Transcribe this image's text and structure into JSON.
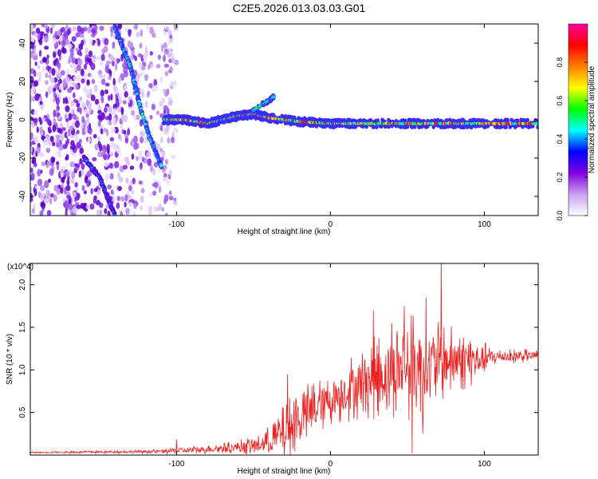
{
  "title": "C2E5.2026.013.03.03.G01",
  "chart_data": [
    {
      "type": "heatmap",
      "xlabel": "Height of straight line (km)",
      "ylabel": "Frequency (Hz)",
      "xlim": [
        -195,
        135
      ],
      "ylim": [
        -50,
        50
      ],
      "xticks": [
        -100,
        0,
        100
      ],
      "xtick_labels": [
        "-100",
        "0",
        "100"
      ],
      "yticks": [
        -40,
        -20,
        0,
        20,
        40
      ],
      "ytick_labels": [
        "-40",
        "-20",
        "0",
        "20",
        "40"
      ],
      "colorbar": {
        "label": "Normalized spectral amplitude",
        "range": [
          0,
          1
        ],
        "ticks": [
          0.0,
          0.2,
          0.4,
          0.6,
          0.8
        ],
        "tick_labels": [
          "0.0",
          "0.2",
          "0.4",
          "0.6",
          "0.8"
        ],
        "colors": [
          "#ffffff",
          "#c8a0f0",
          "#8000e0",
          "#0000ff",
          "#00ffff",
          "#00ff00",
          "#ffff00",
          "#ff8000",
          "#ff0000",
          "#ff00a0"
        ]
      },
      "features": {
        "noise_region_x": [
          -195,
          -100
        ],
        "main_trace": [
          [
            -108,
            0
          ],
          [
            -95,
            0
          ],
          [
            -80,
            -2
          ],
          [
            -70,
            0
          ],
          [
            -60,
            2
          ],
          [
            -50,
            3
          ],
          [
            -40,
            1
          ],
          [
            -20,
            -1
          ],
          [
            0,
            -2
          ],
          [
            20,
            -2
          ],
          [
            50,
            -2
          ],
          [
            80,
            -2
          ],
          [
            100,
            -2
          ],
          [
            135,
            -2
          ]
        ],
        "descending_trace": [
          [
            -140,
            48
          ],
          [
            -135,
            38
          ],
          [
            -130,
            28
          ],
          [
            -127,
            18
          ],
          [
            -123,
            5
          ],
          [
            -118,
            -8
          ],
          [
            -113,
            -18
          ],
          [
            -110,
            -24
          ]
        ],
        "lower_trace": [
          [
            -160,
            -20
          ],
          [
            -150,
            -30
          ],
          [
            -145,
            -40
          ],
          [
            -140,
            -50
          ]
        ],
        "branch": [
          [
            -50,
            5
          ],
          [
            -40,
            10
          ],
          [
            -37,
            12
          ]
        ]
      }
    },
    {
      "type": "line",
      "xlabel": "Height of straight line (km)",
      "ylabel": "SNR (10 * v/v)",
      "y_multiplier": "(x10^4)",
      "xlim": [
        -195,
        135
      ],
      "ylim": [
        0,
        2.25
      ],
      "xticks": [
        -100,
        0,
        100
      ],
      "xtick_labels": [
        "-100",
        "0",
        "100"
      ],
      "yticks": [
        0.5,
        1.0,
        1.5,
        2.0
      ],
      "ytick_labels": [
        "0.5",
        "1.0",
        "1.5",
        "2.0"
      ],
      "series": [
        {
          "color": "#ee2222",
          "envelope": [
            {
              "x": -195,
              "mean": 0.03,
              "amp": 0.01
            },
            {
              "x": -120,
              "mean": 0.04,
              "amp": 0.02
            },
            {
              "x": -100,
              "mean": 0.05,
              "amp": 0.04
            },
            {
              "x": -70,
              "mean": 0.08,
              "amp": 0.06
            },
            {
              "x": -45,
              "mean": 0.12,
              "amp": 0.12
            },
            {
              "x": -30,
              "mean": 0.25,
              "amp": 0.35
            },
            {
              "x": -20,
              "mean": 0.45,
              "amp": 0.4
            },
            {
              "x": 0,
              "mean": 0.65,
              "amp": 0.3
            },
            {
              "x": 20,
              "mean": 0.85,
              "amp": 0.45
            },
            {
              "x": 40,
              "mean": 0.98,
              "amp": 0.55
            },
            {
              "x": 55,
              "mean": 1.05,
              "amp": 0.65
            },
            {
              "x": 75,
              "mean": 1.1,
              "amp": 0.45
            },
            {
              "x": 95,
              "mean": 1.12,
              "amp": 0.3
            },
            {
              "x": 105,
              "mean": 1.15,
              "amp": 0.1
            },
            {
              "x": 135,
              "mean": 1.17,
              "amp": 0.07
            }
          ],
          "peaks": [
            {
              "x": -100,
              "y": 0.18
            },
            {
              "x": -28,
              "y": 0.95
            },
            {
              "x": 28,
              "y": 1.7
            },
            {
              "x": 40,
              "y": 1.55
            },
            {
              "x": 48,
              "y": 1.75
            },
            {
              "x": 62,
              "y": 1.85
            },
            {
              "x": 72,
              "y": 2.25
            },
            {
              "x": 53,
              "y": 0.02
            },
            {
              "x": 60,
              "y": 0.25
            }
          ]
        }
      ]
    }
  ]
}
